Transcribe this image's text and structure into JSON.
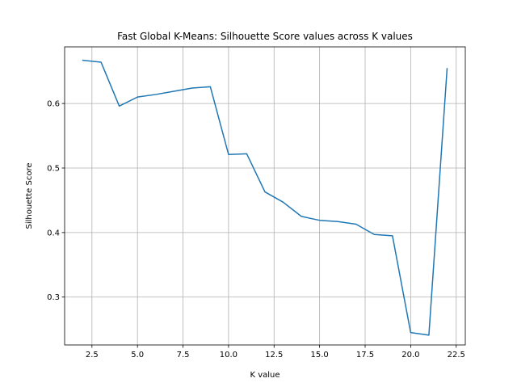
{
  "chart_data": {
    "type": "line",
    "title": "Fast Global K-Means: Silhouette Score values across K values",
    "xlabel": "K value",
    "ylabel": "Silhouette Score",
    "xlim": [
      1.0,
      23.0
    ],
    "ylim": [
      0.2258,
      0.6878
    ],
    "xticks": [
      2.5,
      5.0,
      7.5,
      10.0,
      12.5,
      15.0,
      17.5,
      20.0,
      22.5
    ],
    "xtick_labels": [
      "2.5",
      "5.0",
      "7.5",
      "10.0",
      "12.5",
      "15.0",
      "17.5",
      "20.0",
      "22.5"
    ],
    "yticks": [
      0.3,
      0.4,
      0.5,
      0.6
    ],
    "ytick_labels": [
      "0.3",
      "0.4",
      "0.5",
      "0.6"
    ],
    "grid": true,
    "series": [
      {
        "color": "#1f77b4",
        "x": [
          2,
          3,
          4,
          5,
          6,
          7,
          8,
          9,
          10,
          11,
          12,
          13,
          14,
          15,
          16,
          17,
          18,
          19,
          20,
          21,
          22
        ],
        "y": [
          0.667,
          0.664,
          0.596,
          0.61,
          0.614,
          0.619,
          0.624,
          0.626,
          0.521,
          0.522,
          0.463,
          0.447,
          0.425,
          0.419,
          0.417,
          0.413,
          0.397,
          0.395,
          0.245,
          0.241,
          0.654
        ]
      }
    ]
  }
}
